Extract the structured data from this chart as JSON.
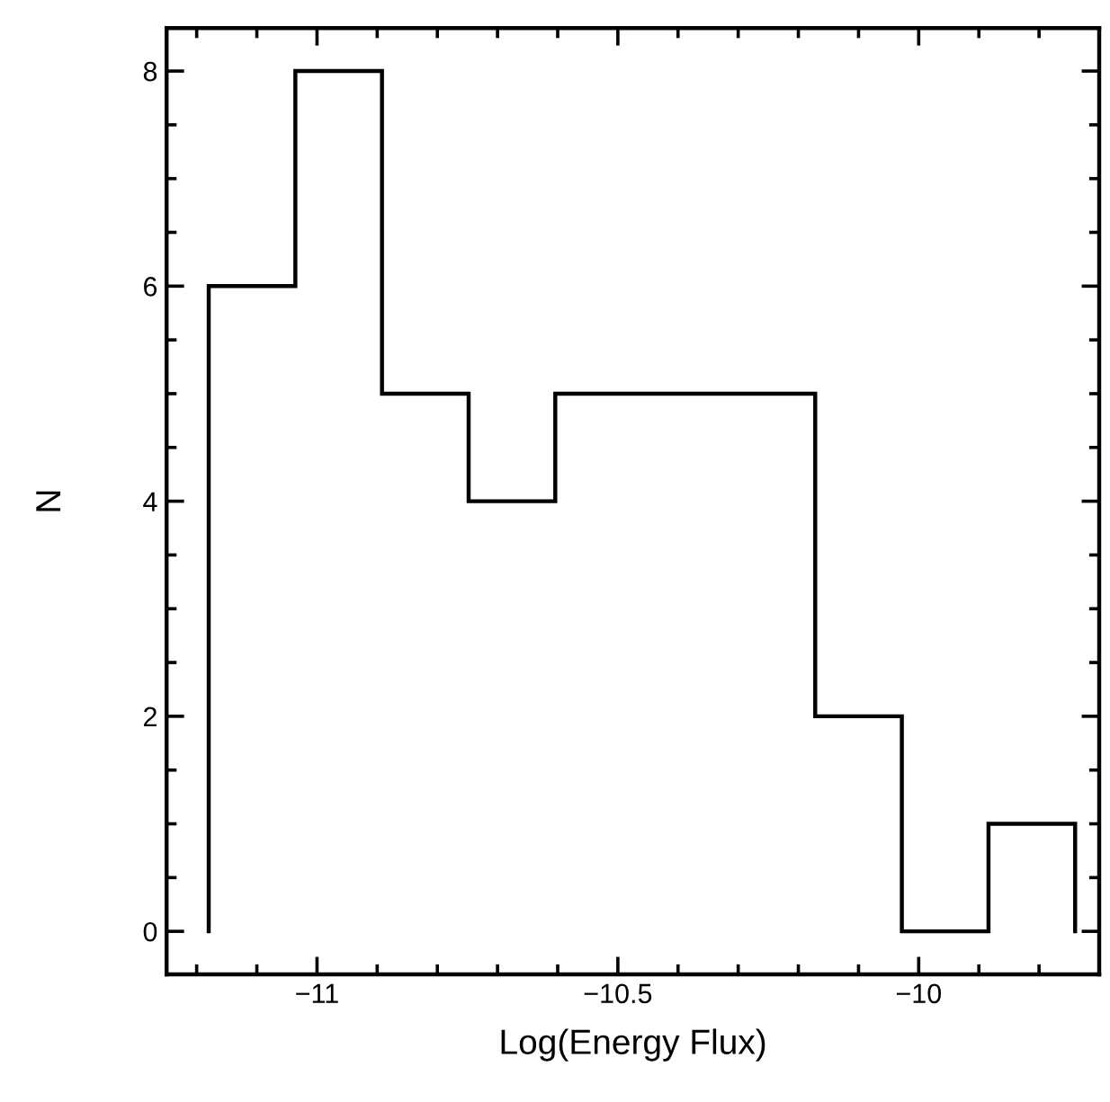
{
  "chart_data": {
    "type": "histogram",
    "xlabel": "Log(Energy Flux)",
    "ylabel": "N",
    "bins": [
      -11.18,
      -11.036,
      -10.892,
      -10.748,
      -10.604,
      -10.46,
      -10.316,
      -10.172,
      -10.028,
      -9.884,
      -9.74
    ],
    "values": [
      6,
      8,
      5,
      4,
      5,
      5,
      5,
      2,
      0,
      1
    ],
    "color": "#000000",
    "xlim": [
      -11.25,
      -9.7
    ],
    "xticks": [
      -11,
      -10.5,
      -10
    ],
    "ylim": [
      -0.4,
      8.4
    ],
    "yticks": [
      0,
      2,
      4,
      6,
      8
    ],
    "grid": false
  }
}
